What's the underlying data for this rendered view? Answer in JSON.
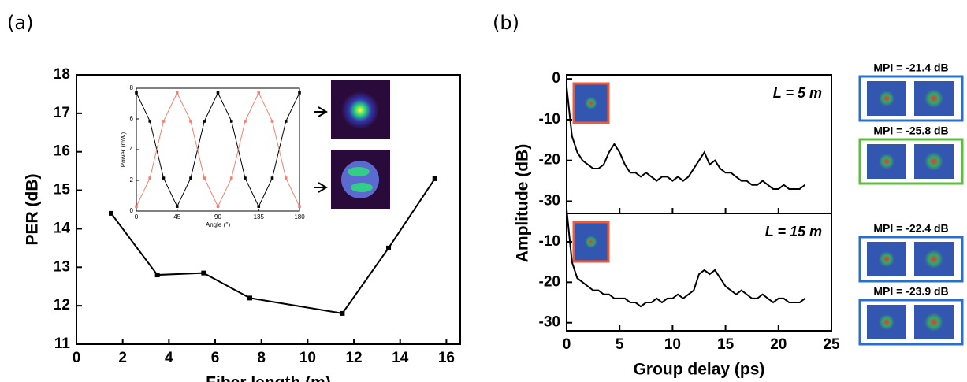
{
  "chart_data": [
    {
      "type": "line",
      "panel_label": "(a)",
      "xlabel": "Fiber length (m)",
      "ylabel": "PER (dB)",
      "x": [
        1.5,
        3.5,
        5.5,
        7.5,
        11.5,
        13.5,
        15.5
      ],
      "series": [
        {
          "name": "PER",
          "color": "#000000",
          "values": [
            14.4,
            12.8,
            12.85,
            12.2,
            11.8,
            13.5,
            15.3
          ]
        }
      ],
      "markers": true,
      "xlim": [
        0,
        16.6
      ],
      "xticks": [
        0,
        2,
        4,
        6,
        8,
        10,
        12,
        14,
        16
      ],
      "ylim": [
        11,
        18
      ],
      "yticks": [
        11,
        12,
        13,
        14,
        15,
        16,
        17,
        18
      ]
    },
    {
      "type": "line",
      "xlabel": "Angle (°)",
      "ylabel": "Power (mW)",
      "x": [
        0,
        15,
        30,
        45,
        60,
        75,
        90,
        105,
        120,
        135,
        150,
        165,
        180
      ],
      "series": [
        {
          "name": "black",
          "color": "#000000",
          "values": [
            7.7,
            5.85,
            2.15,
            0.3,
            2.15,
            5.85,
            7.7,
            5.85,
            2.15,
            0.3,
            2.15,
            5.85,
            7.7
          ]
        },
        {
          "name": "red",
          "color": "#f08070",
          "values": [
            0.3,
            2.15,
            5.85,
            7.7,
            5.85,
            2.15,
            0.3,
            2.15,
            5.85,
            7.7,
            5.85,
            2.15,
            0.3
          ]
        }
      ],
      "markers": true,
      "xlim": [
        0,
        180
      ],
      "xticks": [
        0,
        45,
        90,
        135,
        180
      ],
      "ylim": [
        0,
        8
      ],
      "yticks": [
        0,
        2,
        4,
        6,
        8
      ]
    },
    {
      "type": "line",
      "panel_label": "(b)",
      "ylabel": "Amplitude (dB)",
      "annotation": "L = 5 m",
      "side_labels": [
        "MPI = -21.4 dB",
        "MPI = -25.8 dB"
      ],
      "side_colors": [
        "#2a6fd0",
        "#5bbf3a"
      ],
      "x": [
        0,
        0.5,
        1,
        1.5,
        2,
        2.5,
        3,
        3.5,
        4,
        4.5,
        5,
        5.5,
        6,
        6.5,
        7,
        7.5,
        8,
        8.5,
        9,
        9.5,
        10,
        10.5,
        11,
        11.5,
        12,
        12.5,
        13,
        13.5,
        14,
        14.5,
        15,
        15.5,
        16,
        16.5,
        17,
        17.5,
        18,
        18.5,
        19,
        19.5,
        20,
        20.5,
        21,
        21.5,
        22,
        22.5
      ],
      "series": [
        {
          "name": "L = 5 m",
          "color": "#000000",
          "values": [
            -2,
            -14,
            -18,
            -20,
            -21,
            -22,
            -22,
            -21,
            -18,
            -16,
            -18,
            -21,
            -23,
            -23,
            -24,
            -23,
            -24,
            -25,
            -24,
            -24,
            -25,
            -24,
            -25,
            -24,
            -22,
            -20,
            -18,
            -21,
            -20,
            -22,
            -23,
            -23,
            -24,
            -25,
            -25,
            -26,
            -26,
            -25,
            -26,
            -27,
            -27,
            -26,
            -27,
            -27,
            -27,
            -26
          ]
        }
      ],
      "xlim": [
        0,
        25
      ],
      "xticks": [
        0,
        5,
        10,
        15,
        20,
        25
      ],
      "ylim": [
        -33,
        1
      ],
      "yticks": [
        -30,
        -20,
        -10,
        0
      ]
    },
    {
      "type": "line",
      "xlabel": "Group delay (ps)",
      "annotation": "L = 15 m",
      "side_labels": [
        "MPI = -22.4 dB",
        "MPI = -23.9 dB"
      ],
      "side_colors": [
        "#2a6fd0",
        "#2a6fd0"
      ],
      "x": [
        0,
        0.5,
        1,
        1.5,
        2,
        2.5,
        3,
        3.5,
        4,
        4.5,
        5,
        5.5,
        6,
        6.5,
        7,
        7.5,
        8,
        8.5,
        9,
        9.5,
        10,
        10.5,
        11,
        11.5,
        12,
        12.5,
        13,
        13.5,
        14,
        14.5,
        15,
        15.5,
        16,
        16.5,
        17,
        17.5,
        18,
        18.5,
        19,
        19.5,
        20,
        20.5,
        21,
        21.5,
        22,
        22.5
      ],
      "series": [
        {
          "name": "L = 15 m",
          "color": "#000000",
          "values": [
            -2,
            -15,
            -19,
            -20,
            -21,
            -22,
            -22,
            -23,
            -23,
            -24,
            -24,
            -24,
            -25,
            -25,
            -26,
            -25,
            -25,
            -24,
            -25,
            -24,
            -24,
            -23,
            -24,
            -23,
            -22,
            -18,
            -17,
            -18,
            -17,
            -19,
            -21,
            -22,
            -23,
            -22,
            -23,
            -24,
            -24,
            -23,
            -24,
            -25,
            -24,
            -24,
            -25,
            -25,
            -25,
            -24
          ]
        }
      ],
      "xlim": [
        0,
        25
      ],
      "xticks": [
        0,
        5,
        10,
        15,
        20,
        25
      ],
      "ylim": [
        -32,
        -3
      ],
      "yticks": [
        -30,
        -20,
        -10
      ]
    }
  ]
}
